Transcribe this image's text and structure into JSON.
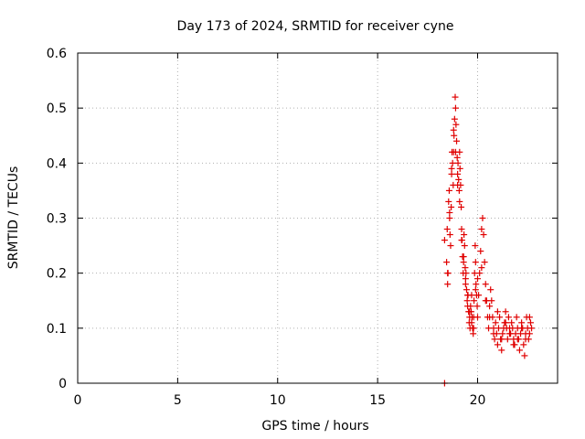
{
  "chart_data": {
    "type": "scatter",
    "title": "Day 173 of 2024, SRMTID for receiver cyne",
    "xlabel": "GPS time / hours",
    "ylabel": "SRMTID / TECUs",
    "xlim": [
      0,
      24
    ],
    "ylim": [
      0,
      0.6
    ],
    "xticks": [
      0,
      5,
      10,
      15,
      20
    ],
    "xtick_labels": [
      "0",
      "5",
      "10",
      "15",
      "20"
    ],
    "yticks": [
      0,
      0.1,
      0.2,
      0.3,
      0.4,
      0.5,
      0.6
    ],
    "ytick_labels": [
      "0",
      "0.1",
      "0.2",
      "0.3",
      "0.4",
      "0.5",
      "0.6"
    ],
    "grid": true,
    "marker": "+",
    "color": "#e00000",
    "series": [
      {
        "name": "SRMTID",
        "x": [
          18.35,
          18.35,
          18.45,
          18.48,
          18.5,
          18.52,
          18.55,
          18.58,
          18.6,
          18.62,
          18.65,
          18.68,
          18.7,
          18.72,
          18.75,
          18.78,
          18.8,
          18.82,
          18.85,
          18.88,
          18.9,
          18.92,
          18.95,
          18.98,
          19.0,
          19.02,
          19.05,
          19.08,
          19.1,
          19.12,
          19.15,
          19.18,
          19.2,
          19.22,
          19.25,
          19.28,
          19.3,
          19.32,
          19.35,
          19.38,
          19.4,
          19.42,
          19.45,
          19.48,
          19.5,
          19.52,
          19.55,
          19.58,
          19.6,
          19.62,
          19.65,
          19.68,
          19.7,
          19.72,
          19.75,
          19.78,
          19.8,
          19.82,
          19.85,
          19.88,
          19.9,
          19.92,
          19.95,
          19.98,
          20.0,
          20.05,
          20.1,
          20.15,
          20.2,
          20.25,
          20.3,
          20.35,
          20.4,
          20.45,
          20.5,
          20.55,
          20.6,
          20.65,
          20.7,
          20.75,
          20.8,
          20.85,
          20.9,
          20.95,
          21.0,
          21.05,
          21.1,
          21.15,
          21.2,
          21.25,
          21.3,
          21.35,
          21.4,
          21.45,
          21.5,
          21.55,
          21.6,
          21.65,
          21.7,
          21.75,
          21.8,
          21.85,
          21.9,
          21.95,
          22.0,
          22.05,
          22.1,
          22.15,
          22.2,
          22.25,
          22.3,
          22.35,
          22.4,
          22.45,
          22.5,
          22.55,
          22.6,
          22.65,
          22.7,
          18.5,
          18.6,
          18.7,
          18.8,
          18.9,
          19.0,
          19.1,
          19.2,
          19.3,
          19.4,
          19.5,
          19.6,
          19.7,
          19.8,
          19.9,
          20.0,
          20.2,
          20.4,
          20.6,
          20.8,
          21.0,
          21.2,
          21.4,
          21.6,
          21.8,
          22.0,
          22.2,
          22.4,
          22.6
        ],
        "y": [
          0.0,
          0.26,
          0.22,
          0.28,
          0.18,
          0.2,
          0.33,
          0.35,
          0.3,
          0.27,
          0.25,
          0.32,
          0.38,
          0.42,
          0.4,
          0.36,
          0.42,
          0.45,
          0.48,
          0.52,
          0.5,
          0.47,
          0.44,
          0.41,
          0.38,
          0.4,
          0.37,
          0.35,
          0.42,
          0.39,
          0.36,
          0.32,
          0.28,
          0.26,
          0.23,
          0.2,
          0.22,
          0.27,
          0.25,
          0.21,
          0.18,
          0.2,
          0.17,
          0.15,
          0.14,
          0.16,
          0.13,
          0.11,
          0.12,
          0.1,
          0.14,
          0.13,
          0.16,
          0.12,
          0.1,
          0.09,
          0.12,
          0.15,
          0.2,
          0.25,
          0.22,
          0.18,
          0.16,
          0.14,
          0.12,
          0.16,
          0.2,
          0.24,
          0.28,
          0.3,
          0.27,
          0.22,
          0.18,
          0.15,
          0.12,
          0.1,
          0.14,
          0.17,
          0.15,
          0.12,
          0.1,
          0.08,
          0.11,
          0.09,
          0.07,
          0.1,
          0.12,
          0.08,
          0.06,
          0.09,
          0.1,
          0.11,
          0.13,
          0.1,
          0.08,
          0.12,
          0.1,
          0.09,
          0.11,
          0.1,
          0.08,
          0.07,
          0.09,
          0.12,
          0.1,
          0.08,
          0.06,
          0.09,
          0.11,
          0.1,
          0.07,
          0.05,
          0.08,
          0.12,
          0.1,
          0.08,
          0.09,
          0.11,
          0.1,
          0.2,
          0.31,
          0.39,
          0.46,
          0.42,
          0.36,
          0.33,
          0.26,
          0.23,
          0.19,
          0.16,
          0.13,
          0.11,
          0.1,
          0.17,
          0.19,
          0.21,
          0.15,
          0.12,
          0.09,
          0.13,
          0.08,
          0.11,
          0.09,
          0.07,
          0.08,
          0.1,
          0.09,
          0.12
        ]
      }
    ]
  }
}
